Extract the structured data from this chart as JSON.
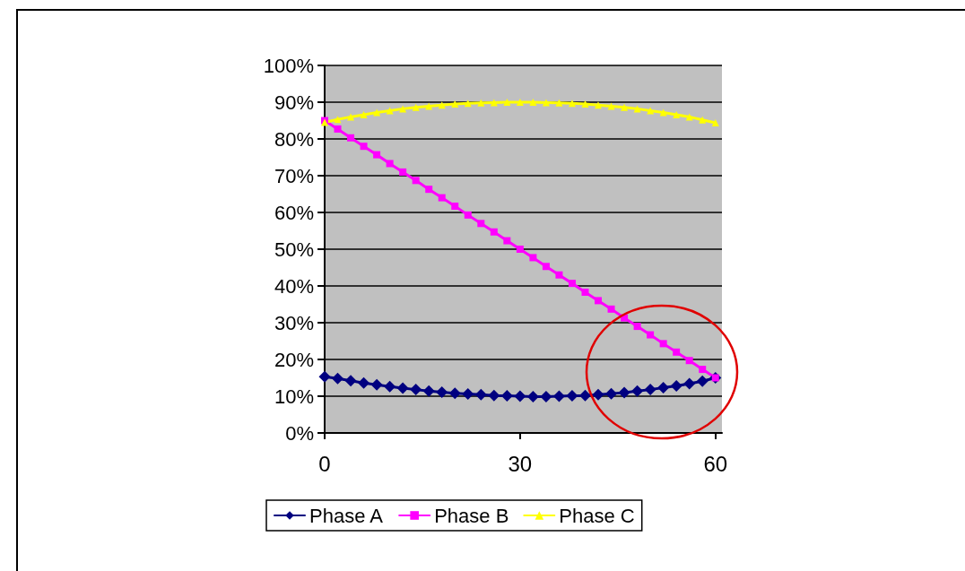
{
  "chart_data": {
    "type": "line",
    "x": [
      0,
      2,
      4,
      6,
      8,
      10,
      12,
      14,
      16,
      18,
      20,
      22,
      24,
      26,
      28,
      30,
      32,
      34,
      36,
      38,
      40,
      42,
      44,
      46,
      48,
      50,
      52,
      54,
      56,
      58,
      60
    ],
    "series": [
      {
        "name": "Phase A",
        "color": "#000080",
        "marker": "diamond",
        "values": [
          15.3,
          14.8,
          14.2,
          13.6,
          13.1,
          12.6,
          12.2,
          11.8,
          11.4,
          11.1,
          10.8,
          10.6,
          10.4,
          10.2,
          10.1,
          10.0,
          9.9,
          9.9,
          10.0,
          10.1,
          10.2,
          10.4,
          10.7,
          11.0,
          11.4,
          11.8,
          12.3,
          12.8,
          13.4,
          14.1,
          15.0
        ]
      },
      {
        "name": "Phase B",
        "color": "#ff00ff",
        "marker": "square",
        "values": [
          85,
          82.7,
          80.3,
          78,
          75.7,
          73.3,
          71,
          68.7,
          66.3,
          64,
          61.7,
          59.3,
          57,
          54.7,
          52.3,
          50,
          47.7,
          45.3,
          43,
          40.7,
          38.3,
          36,
          33.7,
          31.3,
          29,
          26.7,
          24.3,
          22,
          19.7,
          17.3,
          15
        ]
      },
      {
        "name": "Phase C",
        "color": "#ffff00",
        "marker": "triangle",
        "values": [
          84.5,
          85.3,
          86,
          86.6,
          87.2,
          87.7,
          88.2,
          88.6,
          88.9,
          89.2,
          89.5,
          89.7,
          89.8,
          89.9,
          90,
          90,
          90,
          89.9,
          89.8,
          89.7,
          89.5,
          89.2,
          88.9,
          88.6,
          88.2,
          87.7,
          87.2,
          86.6,
          86,
          85.2,
          84.4
        ]
      }
    ],
    "xlim": [
      0,
      61
    ],
    "xticks": [
      0,
      30,
      60
    ],
    "ylim": [
      0,
      100
    ],
    "yticks": [
      {
        "value": 0,
        "label": "0%"
      },
      {
        "value": 10,
        "label": "10%"
      },
      {
        "value": 20,
        "label": "20%"
      },
      {
        "value": 30,
        "label": "30%"
      },
      {
        "value": 40,
        "label": "40%"
      },
      {
        "value": 50,
        "label": "50%"
      },
      {
        "value": 60,
        "label": "60%"
      },
      {
        "value": 70,
        "label": "70%"
      },
      {
        "value": 80,
        "label": "80%"
      },
      {
        "value": 90,
        "label": "90%"
      },
      {
        "value": 100,
        "label": "100%"
      }
    ],
    "grid": "y",
    "legend": "bottom",
    "line_style": "solid"
  }
}
